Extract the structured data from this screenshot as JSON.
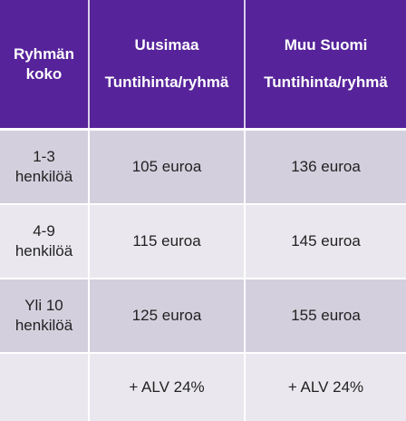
{
  "header": {
    "col1_line1": "Ryhmän",
    "col1_line2": "koko",
    "col2_region": "Uusimaa",
    "col2_unit": "Tuntihinta/ryhmä",
    "col3_region": "Muu Suomi",
    "col3_unit": "Tuntihinta/ryhmä"
  },
  "rows": [
    {
      "size_line1": "1-3",
      "size_line2": "henkilöä",
      "uusimaa": "105 euroa",
      "muu_suomi": "136 euroa"
    },
    {
      "size_line1": "4-9",
      "size_line2": "henkilöä",
      "uusimaa": "115 euroa",
      "muu_suomi": "145 euroa"
    },
    {
      "size_line1": "Yli 10",
      "size_line2": "henkilöä",
      "uusimaa": "125 euroa",
      "muu_suomi": "155 euroa"
    }
  ],
  "footer": {
    "size": "",
    "uusimaa": "+ ALV 24%",
    "muu_suomi": "+ ALV 24%"
  }
}
